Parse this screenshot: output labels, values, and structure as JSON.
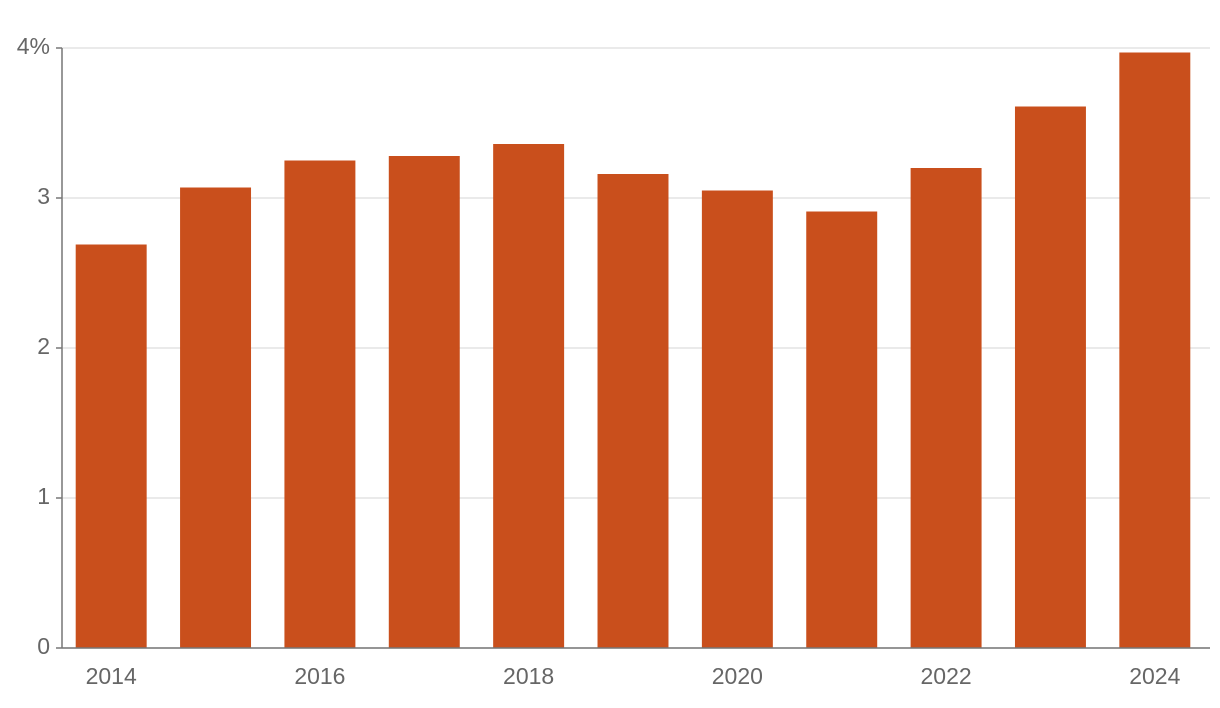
{
  "chart_data": {
    "type": "bar",
    "categories": [
      "2014",
      null,
      "2016",
      null,
      "2018",
      null,
      "2020",
      null,
      "2022",
      null,
      "2024"
    ],
    "values": [
      2.69,
      3.07,
      3.25,
      3.28,
      3.36,
      3.16,
      3.05,
      2.91,
      3.2,
      3.61,
      3.97
    ],
    "color": "#c94f1c",
    "ylim": [
      0,
      4
    ],
    "yticks": [
      0,
      1,
      2,
      3,
      {
        "value": 4,
        "label": "4%"
      }
    ],
    "grid": true
  }
}
